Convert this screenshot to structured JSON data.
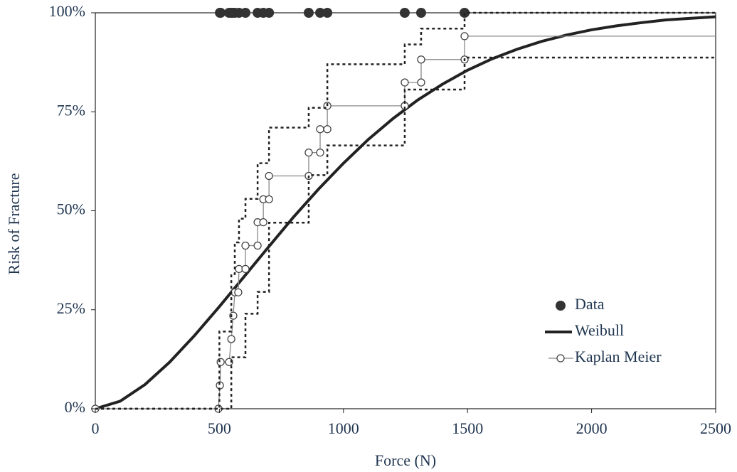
{
  "chart_data": {
    "type": "line",
    "x_label": "Force (N)",
    "y_label": "Risk of Fracture",
    "xlim": [
      0,
      2500
    ],
    "ylim": [
      0,
      100
    ],
    "xticks": [
      0,
      500,
      1000,
      1500,
      2000,
      2500
    ],
    "yticks": [
      {
        "value": 0,
        "label": "0%"
      },
      {
        "value": 25,
        "label": "25%"
      },
      {
        "value": 50,
        "label": "50%"
      },
      {
        "value": 75,
        "label": "75%"
      },
      {
        "value": 100,
        "label": "100%"
      }
    ],
    "legend": "lower right",
    "series": [
      {
        "name": "Data",
        "type": "scatter",
        "color": "#333333",
        "x": [
          502,
          505,
          539,
          548,
          556,
          562,
          579,
          605,
          654,
          677,
          700,
          860,
          906,
          935,
          1247,
          1313,
          1488
        ],
        "values": [
          100,
          100,
          100,
          100,
          100,
          100,
          100,
          100,
          100,
          100,
          100,
          100,
          100,
          100,
          100,
          100,
          100
        ]
      },
      {
        "name": "Weibull",
        "type": "line",
        "color": "#222222",
        "x": [
          0,
          100,
          200,
          300,
          400,
          500,
          600,
          700,
          800,
          900,
          1000,
          1100,
          1200,
          1300,
          1400,
          1500,
          1600,
          1700,
          1800,
          1900,
          2000,
          2100,
          2200,
          2300,
          2400,
          2500
        ],
        "values": [
          0,
          1.9,
          6.1,
          11.8,
          18.5,
          25.8,
          33.4,
          41.0,
          48.5,
          55.5,
          62.0,
          68.0,
          73.3,
          78.0,
          82.0,
          85.5,
          88.4,
          90.8,
          92.8,
          94.4,
          95.7,
          96.7,
          97.5,
          98.2,
          98.6,
          99.0
        ]
      },
      {
        "name": "Kaplan Meier",
        "type": "line-markers",
        "color": "#888888",
        "x": [
          0,
          496,
          502,
          505,
          539,
          548,
          556,
          562,
          576,
          579,
          605,
          605,
          654,
          654,
          677,
          677,
          700,
          700,
          860,
          860,
          906,
          906,
          935,
          935,
          1247,
          1247,
          1313,
          1313,
          1488,
          1488,
          2500
        ],
        "values": [
          0,
          0,
          5.9,
          11.8,
          11.8,
          17.6,
          23.5,
          29.4,
          29.4,
          35.3,
          35.3,
          41.2,
          41.2,
          47.1,
          47.1,
          52.9,
          52.9,
          58.8,
          58.8,
          64.7,
          64.7,
          70.6,
          70.6,
          76.5,
          76.5,
          82.4,
          82.4,
          88.2,
          88.2,
          94.1,
          94.1
        ]
      },
      {
        "type": "line",
        "dash": "dotted",
        "color": "#222222",
        "x": [
          0,
          500,
          500,
          548,
          548,
          562,
          562,
          579,
          579,
          605,
          605,
          654,
          654,
          700,
          700,
          860,
          860,
          935,
          935,
          1247,
          1247,
          1313,
          1313,
          1488,
          1488,
          2500
        ],
        "values": [
          0,
          0,
          19.5,
          19.5,
          34,
          34,
          42,
          42,
          48,
          48,
          53,
          53,
          62,
          62,
          71,
          71,
          76,
          76,
          87,
          87,
          92,
          92,
          96,
          96,
          100,
          100
        ]
      },
      {
        "type": "line",
        "dash": "dotted",
        "color": "#222222",
        "x": [
          0,
          548,
          548,
          605,
          605,
          654,
          654,
          700,
          700,
          860,
          860,
          935,
          935,
          1247,
          1247,
          1488,
          1488,
          2500
        ],
        "values": [
          0,
          0,
          13,
          13,
          24,
          24,
          29.5,
          29.5,
          47,
          47,
          59,
          59,
          66.5,
          66.5,
          80.6,
          80.6,
          88.7,
          88.7
        ]
      }
    ]
  }
}
